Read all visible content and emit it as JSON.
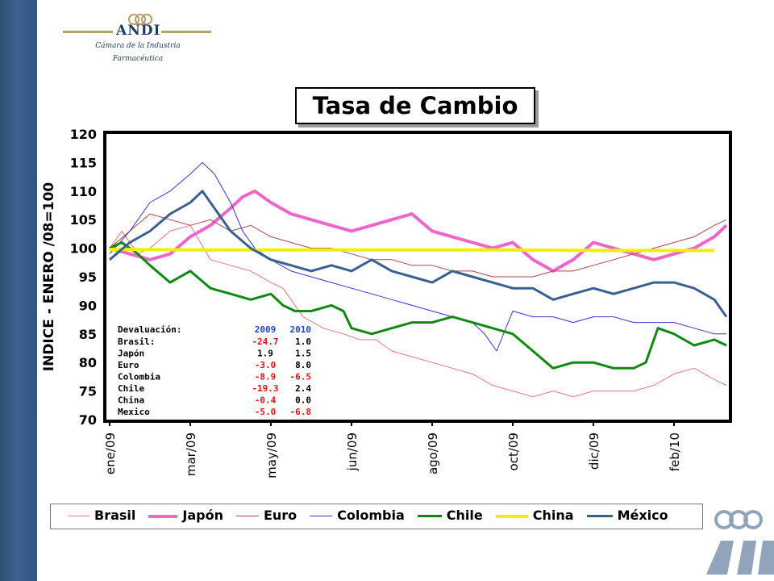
{
  "header": {
    "org": "ANDI",
    "org_subtitle_1": "Cámara de la Industria",
    "org_subtitle_2": "Farmacéutica"
  },
  "chart_data": {
    "type": "line",
    "title": "Tasa de Cambio",
    "ylabel": "INDICE - ENERO /08=100",
    "xlabel": "",
    "ylim": [
      70,
      120
    ],
    "yticks": [
      70,
      75,
      80,
      85,
      90,
      95,
      100,
      105,
      110,
      115,
      120
    ],
    "xlim": [
      0,
      15.3
    ],
    "xticks": [
      {
        "label": "ene/09",
        "x": 0
      },
      {
        "label": "mar/09",
        "x": 2
      },
      {
        "label": "may/09",
        "x": 4
      },
      {
        "label": "jun/09",
        "x": 6
      },
      {
        "label": "ago/09",
        "x": 8
      },
      {
        "label": "oct/09",
        "x": 10
      },
      {
        "label": "dic/09",
        "x": 12
      },
      {
        "label": "feb/10",
        "x": 14
      }
    ],
    "legend_position": "bottom",
    "grid": false,
    "series": [
      {
        "name": "Brasil",
        "color": "#e07878",
        "width": 1,
        "x": [
          0,
          0.3,
          0.7,
          1,
          1.5,
          2,
          2.5,
          3,
          3.5,
          4,
          4.3,
          4.8,
          5.3,
          5.8,
          6.2,
          6.6,
          7,
          7.5,
          8,
          8.5,
          9,
          9.5,
          10,
          10.5,
          11,
          11.5,
          12,
          12.5,
          13,
          13.5,
          14,
          14.5,
          15,
          15.3
        ],
        "y": [
          100,
          103,
          99,
          100,
          103,
          104,
          98,
          97,
          96,
          94,
          93,
          88,
          86,
          85,
          84,
          84,
          82,
          81,
          80,
          79,
          78,
          76,
          75,
          74,
          75,
          74,
          75,
          75,
          75,
          76,
          78,
          79,
          77,
          76
        ]
      },
      {
        "name": "Japón",
        "color": "#ee66cc",
        "width": 4,
        "x": [
          0,
          0.5,
          1,
          1.5,
          2,
          2.5,
          3,
          3.3,
          3.6,
          4,
          4.5,
          5,
          5.5,
          6,
          6.5,
          7,
          7.5,
          8,
          8.5,
          9,
          9.5,
          10,
          10.5,
          11,
          11.5,
          12,
          12.5,
          13,
          13.5,
          14,
          14.5,
          15,
          15.3
        ],
        "y": [
          100,
          99,
          98,
          99,
          102,
          104,
          107,
          109,
          110,
          108,
          106,
          105,
          104,
          103,
          104,
          105,
          106,
          103,
          102,
          101,
          100,
          101,
          98,
          96,
          98,
          101,
          100,
          99,
          98,
          99,
          100,
          102,
          104
        ]
      },
      {
        "name": "Euro",
        "color": "#a04848",
        "width": 1,
        "x": [
          0,
          0.5,
          1,
          1.5,
          2,
          2.5,
          3,
          3.5,
          4,
          4.5,
          5,
          5.5,
          6,
          6.5,
          7,
          7.5,
          8,
          8.5,
          9,
          9.5,
          10,
          10.5,
          11,
          11.5,
          12,
          12.5,
          13,
          13.5,
          14,
          14.5,
          15,
          15.3
        ],
        "y": [
          100,
          103,
          106,
          105,
          104,
          105,
          103,
          104,
          102,
          101,
          100,
          100,
          99,
          98,
          98,
          97,
          97,
          96,
          96,
          95,
          95,
          95,
          96,
          96,
          97,
          98,
          99,
          100,
          101,
          102,
          104,
          105
        ]
      },
      {
        "name": "Colombia",
        "color": "#3333cc",
        "width": 1,
        "x": [
          0,
          0.5,
          1,
          1.5,
          2,
          2.3,
          2.6,
          3,
          3.3,
          3.6,
          4,
          4.5,
          5,
          5.5,
          6,
          6.5,
          7,
          7.5,
          8,
          8.5,
          9,
          9.3,
          9.6,
          10,
          10.5,
          11,
          11.5,
          12,
          12.5,
          13,
          13.5,
          14,
          14.5,
          15,
          15.3
        ],
        "y": [
          99,
          103,
          108,
          110,
          113,
          115,
          113,
          108,
          103,
          100,
          98,
          96,
          95,
          94,
          93,
          92,
          91,
          90,
          89,
          88,
          87,
          85,
          82,
          89,
          88,
          88,
          87,
          88,
          88,
          87,
          87,
          87,
          86,
          85,
          85
        ]
      },
      {
        "name": "Chile",
        "color": "#118811",
        "width": 3,
        "x": [
          0,
          0.3,
          0.7,
          1,
          1.5,
          2,
          2.5,
          3,
          3.5,
          4,
          4.3,
          4.6,
          5,
          5.5,
          5.8,
          6,
          6.5,
          7,
          7.5,
          8,
          8.5,
          9,
          9.5,
          10,
          10.5,
          11,
          11.5,
          12,
          12.5,
          13,
          13.3,
          13.6,
          14,
          14.5,
          15,
          15.3
        ],
        "y": [
          100,
          101,
          99,
          97,
          94,
          96,
          93,
          92,
          91,
          92,
          90,
          89,
          89,
          90,
          89,
          86,
          85,
          86,
          87,
          87,
          88,
          87,
          86,
          85,
          82,
          79,
          80,
          80,
          79,
          79,
          80,
          86,
          85,
          83,
          84,
          83
        ]
      },
      {
        "name": "China",
        "color": "#f0f000",
        "width": 4,
        "x": [
          0,
          2,
          4,
          6,
          8,
          10,
          12,
          14,
          15
        ],
        "y": [
          99.8,
          99.7,
          99.7,
          99.7,
          99.7,
          99.7,
          99.6,
          99.6,
          99.6
        ]
      },
      {
        "name": "México",
        "color": "#3a6090",
        "width": 3,
        "x": [
          0,
          0.5,
          1,
          1.5,
          2,
          2.3,
          2.6,
          3,
          3.5,
          4,
          4.5,
          5,
          5.5,
          6,
          6.5,
          7,
          7.5,
          8,
          8.5,
          9,
          9.5,
          10,
          10.5,
          11,
          11.5,
          12,
          12.5,
          13,
          13.5,
          14,
          14.5,
          15,
          15.3
        ],
        "y": [
          98,
          101,
          103,
          106,
          108,
          110,
          107,
          103,
          100,
          98,
          97,
          96,
          97,
          96,
          98,
          96,
          95,
          94,
          96,
          95,
          94,
          93,
          93,
          91,
          92,
          93,
          92,
          93,
          94,
          94,
          93,
          91,
          88
        ]
      }
    ],
    "annotation_table": {
      "header": [
        "Devaluación:",
        "2009",
        "2010"
      ],
      "rows": [
        [
          "Brasil:",
          "-24.7",
          "1.0"
        ],
        [
          "Japón",
          "1.9",
          "1.5"
        ],
        [
          "Euro",
          "-3.0",
          "8.0"
        ],
        [
          "Colombia",
          "-8.9",
          "-6.5"
        ],
        [
          "Chile",
          "-19.3",
          "2.4"
        ],
        [
          "China",
          "-0.4",
          "0.0"
        ],
        [
          "Mexico",
          "-5.0",
          "-6.8"
        ]
      ]
    }
  }
}
